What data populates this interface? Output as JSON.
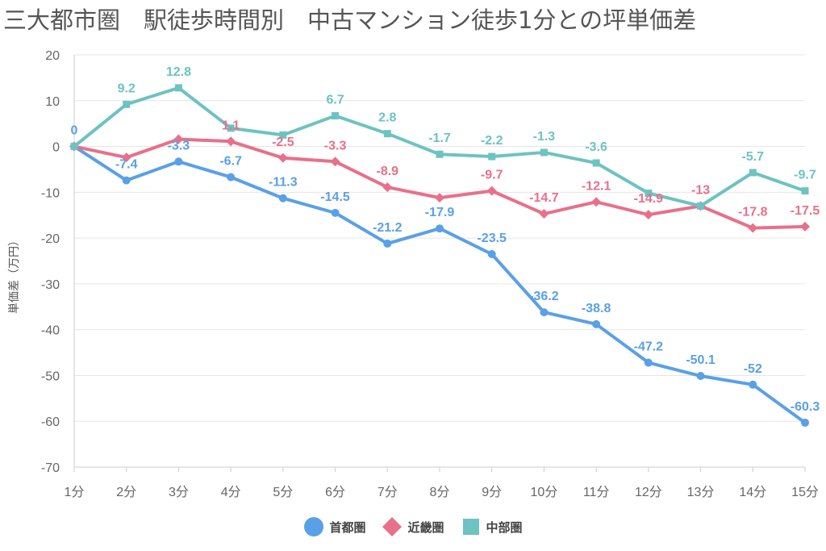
{
  "title": "三大都市圏　駅徒歩時間別　中古マンション徒歩1分との坪単価差",
  "chart_data": {
    "type": "line",
    "title": "三大都市圏　駅徒歩時間別　中古マンション徒歩1分との坪単価差",
    "xlabel": "",
    "ylabel": "単価差（万円）",
    "ylim": [
      -70,
      20
    ],
    "yticks": [
      "20",
      "10",
      "0",
      "-10",
      "-20",
      "-30",
      "-40",
      "-50",
      "-60",
      "-70"
    ],
    "grid": true,
    "legend_position": "bottom",
    "categories": [
      "1分",
      "2分",
      "3分",
      "4分",
      "5分",
      "6分",
      "7分",
      "8分",
      "9分",
      "10分",
      "11分",
      "12分",
      "13分",
      "14分",
      "15分"
    ],
    "series": [
      {
        "name": "首都圏",
        "color": "#5aa0e6",
        "marker": "circle",
        "values": [
          0,
          -7.4,
          -3.3,
          -6.7,
          -11.3,
          -14.5,
          -21.2,
          -17.9,
          -23.5,
          -36.2,
          -38.8,
          -47.2,
          -50.1,
          -52,
          -60.3
        ]
      },
      {
        "name": "近畿圏",
        "color": "#e8708a",
        "marker": "diamond",
        "values": [
          0,
          -2.4,
          1.6,
          1.1,
          -2.5,
          -3.3,
          -8.9,
          -11.2,
          -9.7,
          -14.7,
          -12.1,
          -14.9,
          -13,
          -17.8,
          -17.5
        ]
      },
      {
        "name": "中部圏",
        "color": "#6cc3c1",
        "marker": "square",
        "values": [
          0,
          9.2,
          12.8,
          4.0,
          2.5,
          6.7,
          2.8,
          -1.7,
          -2.2,
          -1.3,
          -3.6,
          -10.2,
          -13,
          -5.7,
          -9.7
        ]
      }
    ],
    "data_labels": [
      [
        "0",
        "-7.4",
        "-3.3",
        "-6.7",
        "-11.3",
        "-14.5",
        "-21.2",
        "-17.9",
        "-23.5",
        "-36.2",
        "-38.8",
        "-47.2",
        "-50.1",
        "-52",
        "-60.3"
      ],
      [
        "",
        "",
        "",
        "1.1",
        "-2.5",
        "-3.3",
        "-8.9",
        "",
        "-9.7",
        "-14.7",
        "-12.1",
        "-14.9",
        "-13",
        "-17.8",
        "-17.5"
      ],
      [
        "",
        "9.2",
        "12.8",
        "",
        "",
        "6.7",
        "2.8",
        "-1.7",
        "-2.2",
        "-1.3",
        "-3.6",
        "",
        "",
        "-5.7",
        "-9.7"
      ]
    ]
  }
}
